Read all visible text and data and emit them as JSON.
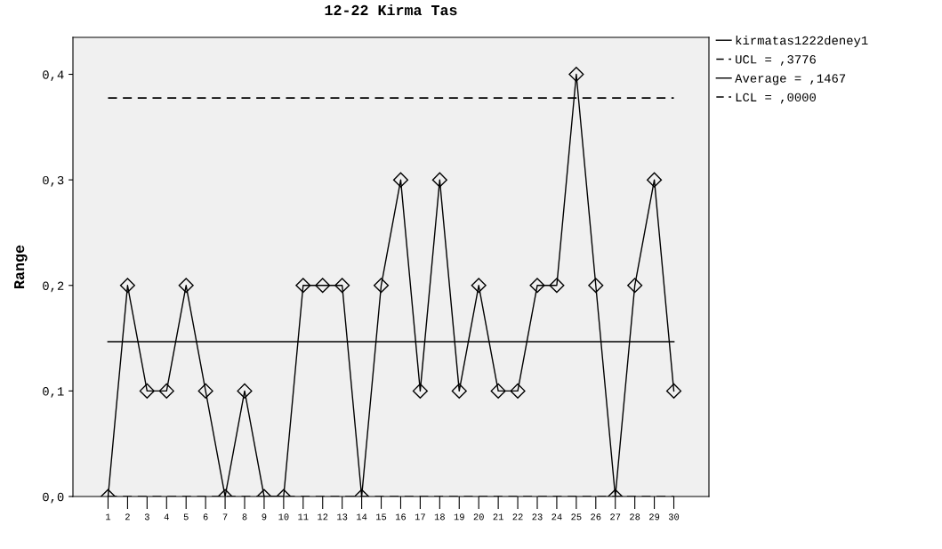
{
  "chart_data": {
    "type": "line",
    "title": "12-22 Kirma Tas",
    "ylabel": "Range",
    "categories": [
      "1",
      "2",
      "3",
      "4",
      "5",
      "6",
      "7",
      "8",
      "9",
      "10",
      "11",
      "12",
      "13",
      "14",
      "15",
      "16",
      "17",
      "18",
      "19",
      "20",
      "21",
      "22",
      "23",
      "24",
      "25",
      "26",
      "27",
      "28",
      "29",
      "30"
    ],
    "series": [
      {
        "name": "kirmatas1222deney1",
        "color": "#000000",
        "values": [
          0,
          0.2,
          0.1,
          0.1,
          0.2,
          0.1,
          0,
          0.1,
          0,
          0,
          0.2,
          0.2,
          0.2,
          0,
          0.2,
          0.3,
          0.1,
          0.3,
          0.1,
          0.2,
          0.1,
          0.1,
          0.2,
          0.2,
          0.4,
          0.2,
          0,
          0.2,
          0.3,
          0.1
        ]
      }
    ],
    "ref_lines": [
      {
        "axis": "y",
        "value": 0.3776,
        "label": "UCL = ,3776",
        "color": "#000000",
        "line_style": "dashed"
      },
      {
        "axis": "y",
        "value": 0.1467,
        "label": "Average = ,1467",
        "color": "#000000",
        "line_style": "solid"
      },
      {
        "axis": "y",
        "value": 0,
        "label": "LCL = ,0000",
        "color": "#000000",
        "line_style": "dashed"
      }
    ],
    "ylim": [
      0,
      0.435
    ],
    "yticks": [
      {
        "value": 0,
        "label": "0,0"
      },
      {
        "value": 0.1,
        "label": "0,1"
      },
      {
        "value": 0.2,
        "label": "0,2"
      },
      {
        "value": 0.3,
        "label": "0,3"
      },
      {
        "value": 0.4,
        "label": "0,4"
      }
    ],
    "marker": "diamond",
    "line_style": "solid",
    "grid": false,
    "legend": "top right"
  }
}
